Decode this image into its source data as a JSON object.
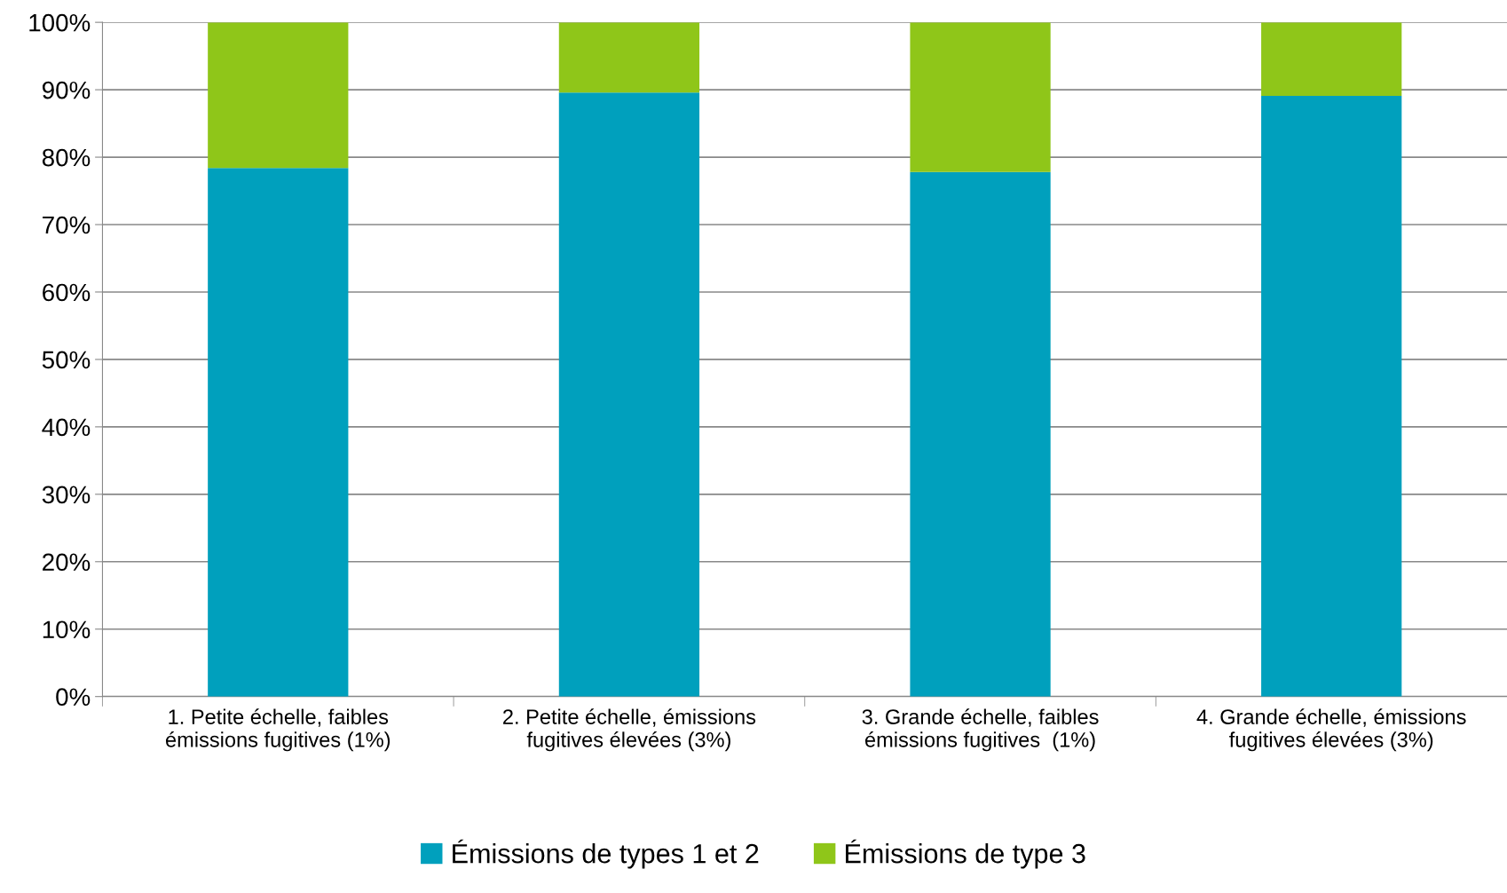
{
  "chart_data": {
    "type": "bar",
    "stacked": true,
    "categories": [
      "1. Petite échelle, faibles\némissions fugitives (1%)",
      "2. Petite échelle, émissions\nfugitives élevées (3%)",
      "3. Grande échelle, faibles\némissions fugitives  (1%)",
      "4. Grande échelle, émissions\nfugitives élevées (3%)"
    ],
    "series": [
      {
        "name": "Émissions de types 1 et 2",
        "color": "#00a0bd",
        "values": [
          78.4,
          89.6,
          77.8,
          89.1
        ]
      },
      {
        "name": "Émissions de type 3",
        "color": "#8fc619",
        "values": [
          21.6,
          10.4,
          22.2,
          10.9
        ]
      }
    ],
    "ylim": [
      0,
      100
    ],
    "yticks": [
      {
        "value": 0,
        "label": "0%"
      },
      {
        "value": 10,
        "label": "10%"
      },
      {
        "value": 20,
        "label": "20%"
      },
      {
        "value": 30,
        "label": "30%"
      },
      {
        "value": 40,
        "label": "40%"
      },
      {
        "value": 50,
        "label": "50%"
      },
      {
        "value": 60,
        "label": "60%"
      },
      {
        "value": 70,
        "label": "70%"
      },
      {
        "value": 80,
        "label": "80%"
      },
      {
        "value": 90,
        "label": "90%"
      },
      {
        "value": 100,
        "label": "100%"
      }
    ],
    "grid": "y",
    "legend": "bottom"
  }
}
